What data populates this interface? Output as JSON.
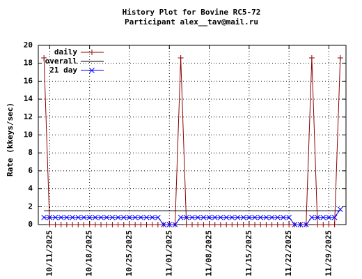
{
  "chart_data": {
    "type": "line",
    "title": "History Plot for Bovine RC5-72",
    "subtitle": "Participant alex__tav@mail.ru",
    "y_label": "Rate (kkeys/sec)",
    "x": [
      "2025-10-10",
      "2025-10-11",
      "2025-10-12",
      "2025-10-13",
      "2025-10-14",
      "2025-10-15",
      "2025-10-16",
      "2025-10-17",
      "2025-10-18",
      "2025-10-19",
      "2025-10-20",
      "2025-10-21",
      "2025-10-22",
      "2025-10-23",
      "2025-10-24",
      "2025-10-25",
      "2025-10-26",
      "2025-10-27",
      "2025-10-28",
      "2025-10-29",
      "2025-10-30",
      "2025-10-31",
      "2025-11-01",
      "2025-11-02",
      "2025-11-03",
      "2025-11-04",
      "2025-11-05",
      "2025-11-06",
      "2025-11-07",
      "2025-11-08",
      "2025-11-09",
      "2025-11-10",
      "2025-11-11",
      "2025-11-12",
      "2025-11-13",
      "2025-11-14",
      "2025-11-15",
      "2025-11-16",
      "2025-11-17",
      "2025-11-18",
      "2025-11-19",
      "2025-11-20",
      "2025-11-21",
      "2025-11-22",
      "2025-11-23",
      "2025-11-24",
      "2025-11-25",
      "2025-11-26",
      "2025-11-27",
      "2025-11-28",
      "2025-11-29",
      "2025-11-30",
      "2025-12-01"
    ],
    "series": [
      {
        "name": "daily",
        "color": "#8b0000",
        "marker": "plus",
        "values": [
          18.6,
          0,
          0,
          0,
          0,
          0,
          0,
          0,
          0,
          0,
          0,
          0,
          0,
          0,
          0,
          0,
          0,
          0,
          0,
          0,
          0,
          0,
          0,
          0,
          18.6,
          0,
          0,
          0,
          0,
          0,
          0,
          0,
          0,
          0,
          0,
          0,
          0,
          0,
          0,
          0,
          0,
          0,
          0,
          0,
          0,
          0,
          0,
          18.6,
          0,
          0,
          0,
          0,
          18.6
        ]
      },
      {
        "name": "overall",
        "color": "#000000",
        "marker": "none",
        "values": [
          1.55,
          1.55,
          1.55,
          1.55,
          1.55,
          1.55,
          1.55,
          1.55,
          1.55,
          1.55,
          1.55,
          1.55,
          1.55,
          1.55,
          1.55,
          1.55,
          1.55,
          1.55,
          1.55,
          1.55,
          1.55,
          1.55,
          1.55,
          1.55,
          1.55,
          1.55,
          1.55,
          1.55,
          1.55,
          1.55,
          1.55,
          1.55,
          1.55,
          1.55,
          1.55,
          1.55,
          1.55,
          1.55,
          1.55,
          1.55,
          1.55,
          1.55,
          1.55,
          1.55,
          1.55,
          1.55,
          1.55,
          1.55,
          1.55,
          1.55,
          1.55,
          1.55,
          1.55
        ]
      },
      {
        "name": "21 day",
        "color": "#0000ff",
        "marker": "cross",
        "values": [
          0.8,
          0.8,
          0.8,
          0.8,
          0.8,
          0.8,
          0.8,
          0.8,
          0.8,
          0.8,
          0.8,
          0.8,
          0.8,
          0.8,
          0.8,
          0.8,
          0.8,
          0.8,
          0.8,
          0.8,
          0.8,
          0,
          0,
          0,
          0.8,
          0.8,
          0.8,
          0.8,
          0.8,
          0.8,
          0.8,
          0.8,
          0.8,
          0.8,
          0.8,
          0.8,
          0.8,
          0.8,
          0.8,
          0.8,
          0.8,
          0.8,
          0.8,
          0.8,
          0,
          0,
          0,
          0.8,
          0.8,
          0.8,
          0.8,
          0.8,
          1.7
        ]
      }
    ],
    "xlim": [
      "2025-10-09",
      "2025-12-02"
    ],
    "xticks": [
      {
        "value": "2025-10-11",
        "label": "10/11/2025"
      },
      {
        "value": "2025-10-18",
        "label": "10/18/2025"
      },
      {
        "value": "2025-10-25",
        "label": "10/25/2025"
      },
      {
        "value": "2025-11-01",
        "label": "11/01/2025"
      },
      {
        "value": "2025-11-08",
        "label": "11/08/2025"
      },
      {
        "value": "2025-11-15",
        "label": "11/15/2025"
      },
      {
        "value": "2025-11-22",
        "label": "11/22/2025"
      },
      {
        "value": "2025-11-29",
        "label": "11/29/2025"
      }
    ],
    "ylim": [
      0,
      20
    ],
    "yticks": [
      0,
      2,
      4,
      6,
      8,
      10,
      12,
      14,
      16,
      18,
      20
    ],
    "grid": true,
    "legend": "top-left"
  }
}
